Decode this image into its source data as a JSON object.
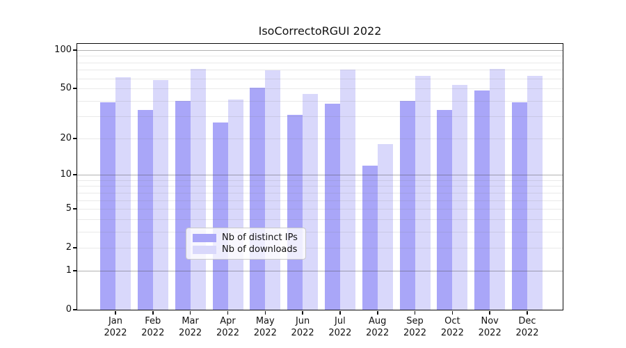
{
  "chart_data": {
    "type": "bar",
    "title": "IsoCorrectoRGUI 2022",
    "categories": [
      "Jan 2022",
      "Feb 2022",
      "Mar 2022",
      "Apr 2022",
      "May 2022",
      "Jun 2022",
      "Jul 2022",
      "Aug 2022",
      "Sep 2022",
      "Oct 2022",
      "Nov 2022",
      "Dec 2022"
    ],
    "month_labels": [
      "Jan",
      "Feb",
      "Mar",
      "Apr",
      "May",
      "Jun",
      "Jul",
      "Aug",
      "Sep",
      "Oct",
      "Nov",
      "Dec"
    ],
    "year_label": "2022",
    "series": [
      {
        "name": "Nb of distinct IPs",
        "color": "#a9a6f8",
        "values": [
          39,
          34,
          40,
          27,
          51,
          31,
          38,
          12,
          40,
          34,
          48,
          39
        ]
      },
      {
        "name": "Nb of downloads",
        "color": "#d9d8fb",
        "values": [
          61,
          58,
          71,
          41,
          69,
          45,
          70,
          18,
          63,
          53,
          71,
          63
        ]
      }
    ],
    "y_axis": {
      "scale": "log1p",
      "tick_labels": [
        "0",
        "1",
        "2",
        "5",
        "10",
        "20",
        "50",
        "100"
      ],
      "tick_values": [
        0,
        1,
        2,
        5,
        10,
        20,
        50,
        100
      ],
      "major_gridline_values": [
        1,
        10,
        100
      ],
      "minor_gridline_values": [
        2,
        3,
        4,
        5,
        6,
        7,
        8,
        9,
        20,
        30,
        40,
        50,
        60,
        70,
        80,
        90
      ],
      "ylim": [
        0,
        111
      ]
    },
    "legend": {
      "position": "bottom-center",
      "entries": [
        "Nb of distinct IPs",
        "Nb of downloads"
      ]
    },
    "grid": true,
    "colors": {
      "bar_distinct_ips": "#a9a6f8",
      "bar_downloads": "#d9d8fb",
      "grid_major": "#b1b1b1",
      "grid_minor": "#e6e6e6",
      "spine": "#0a0a0a",
      "legend_border": "#c9c9c9",
      "background": "#ffffff"
    }
  }
}
